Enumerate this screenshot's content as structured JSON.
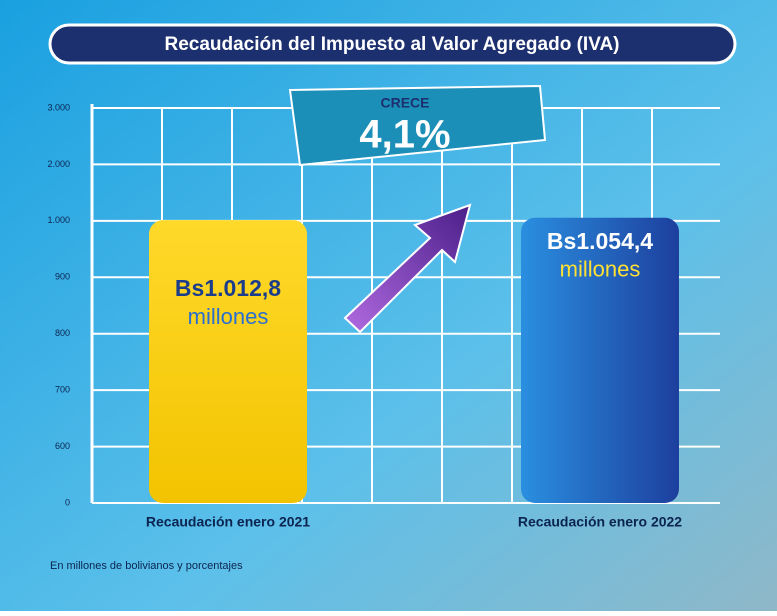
{
  "chart_data": {
    "type": "bar",
    "title": "Recaudación del Impuesto al Valor Agregado (IVA)",
    "categories": [
      "Recaudación enero 2021",
      "Recaudación enero 2022"
    ],
    "values": [
      1012.8,
      1054.4
    ],
    "value_labels": [
      "Bs1.012,8",
      "Bs1.054,4"
    ],
    "unit_label": "millones",
    "colors": [
      "#f8d416",
      "#2061c8"
    ],
    "yticks": [
      0,
      600,
      700,
      800,
      900,
      {
        "value": 1000,
        "label": "1.000"
      },
      {
        "value": 2000,
        "label": "2.000"
      },
      {
        "value": 3000,
        "label": "3.000"
      }
    ],
    "ylim": [
      0,
      3000
    ],
    "grid": true,
    "annotation_title": "CRECE",
    "annotation": "4,1%",
    "footnote": "En millones de bolivianos y porcentajes"
  }
}
